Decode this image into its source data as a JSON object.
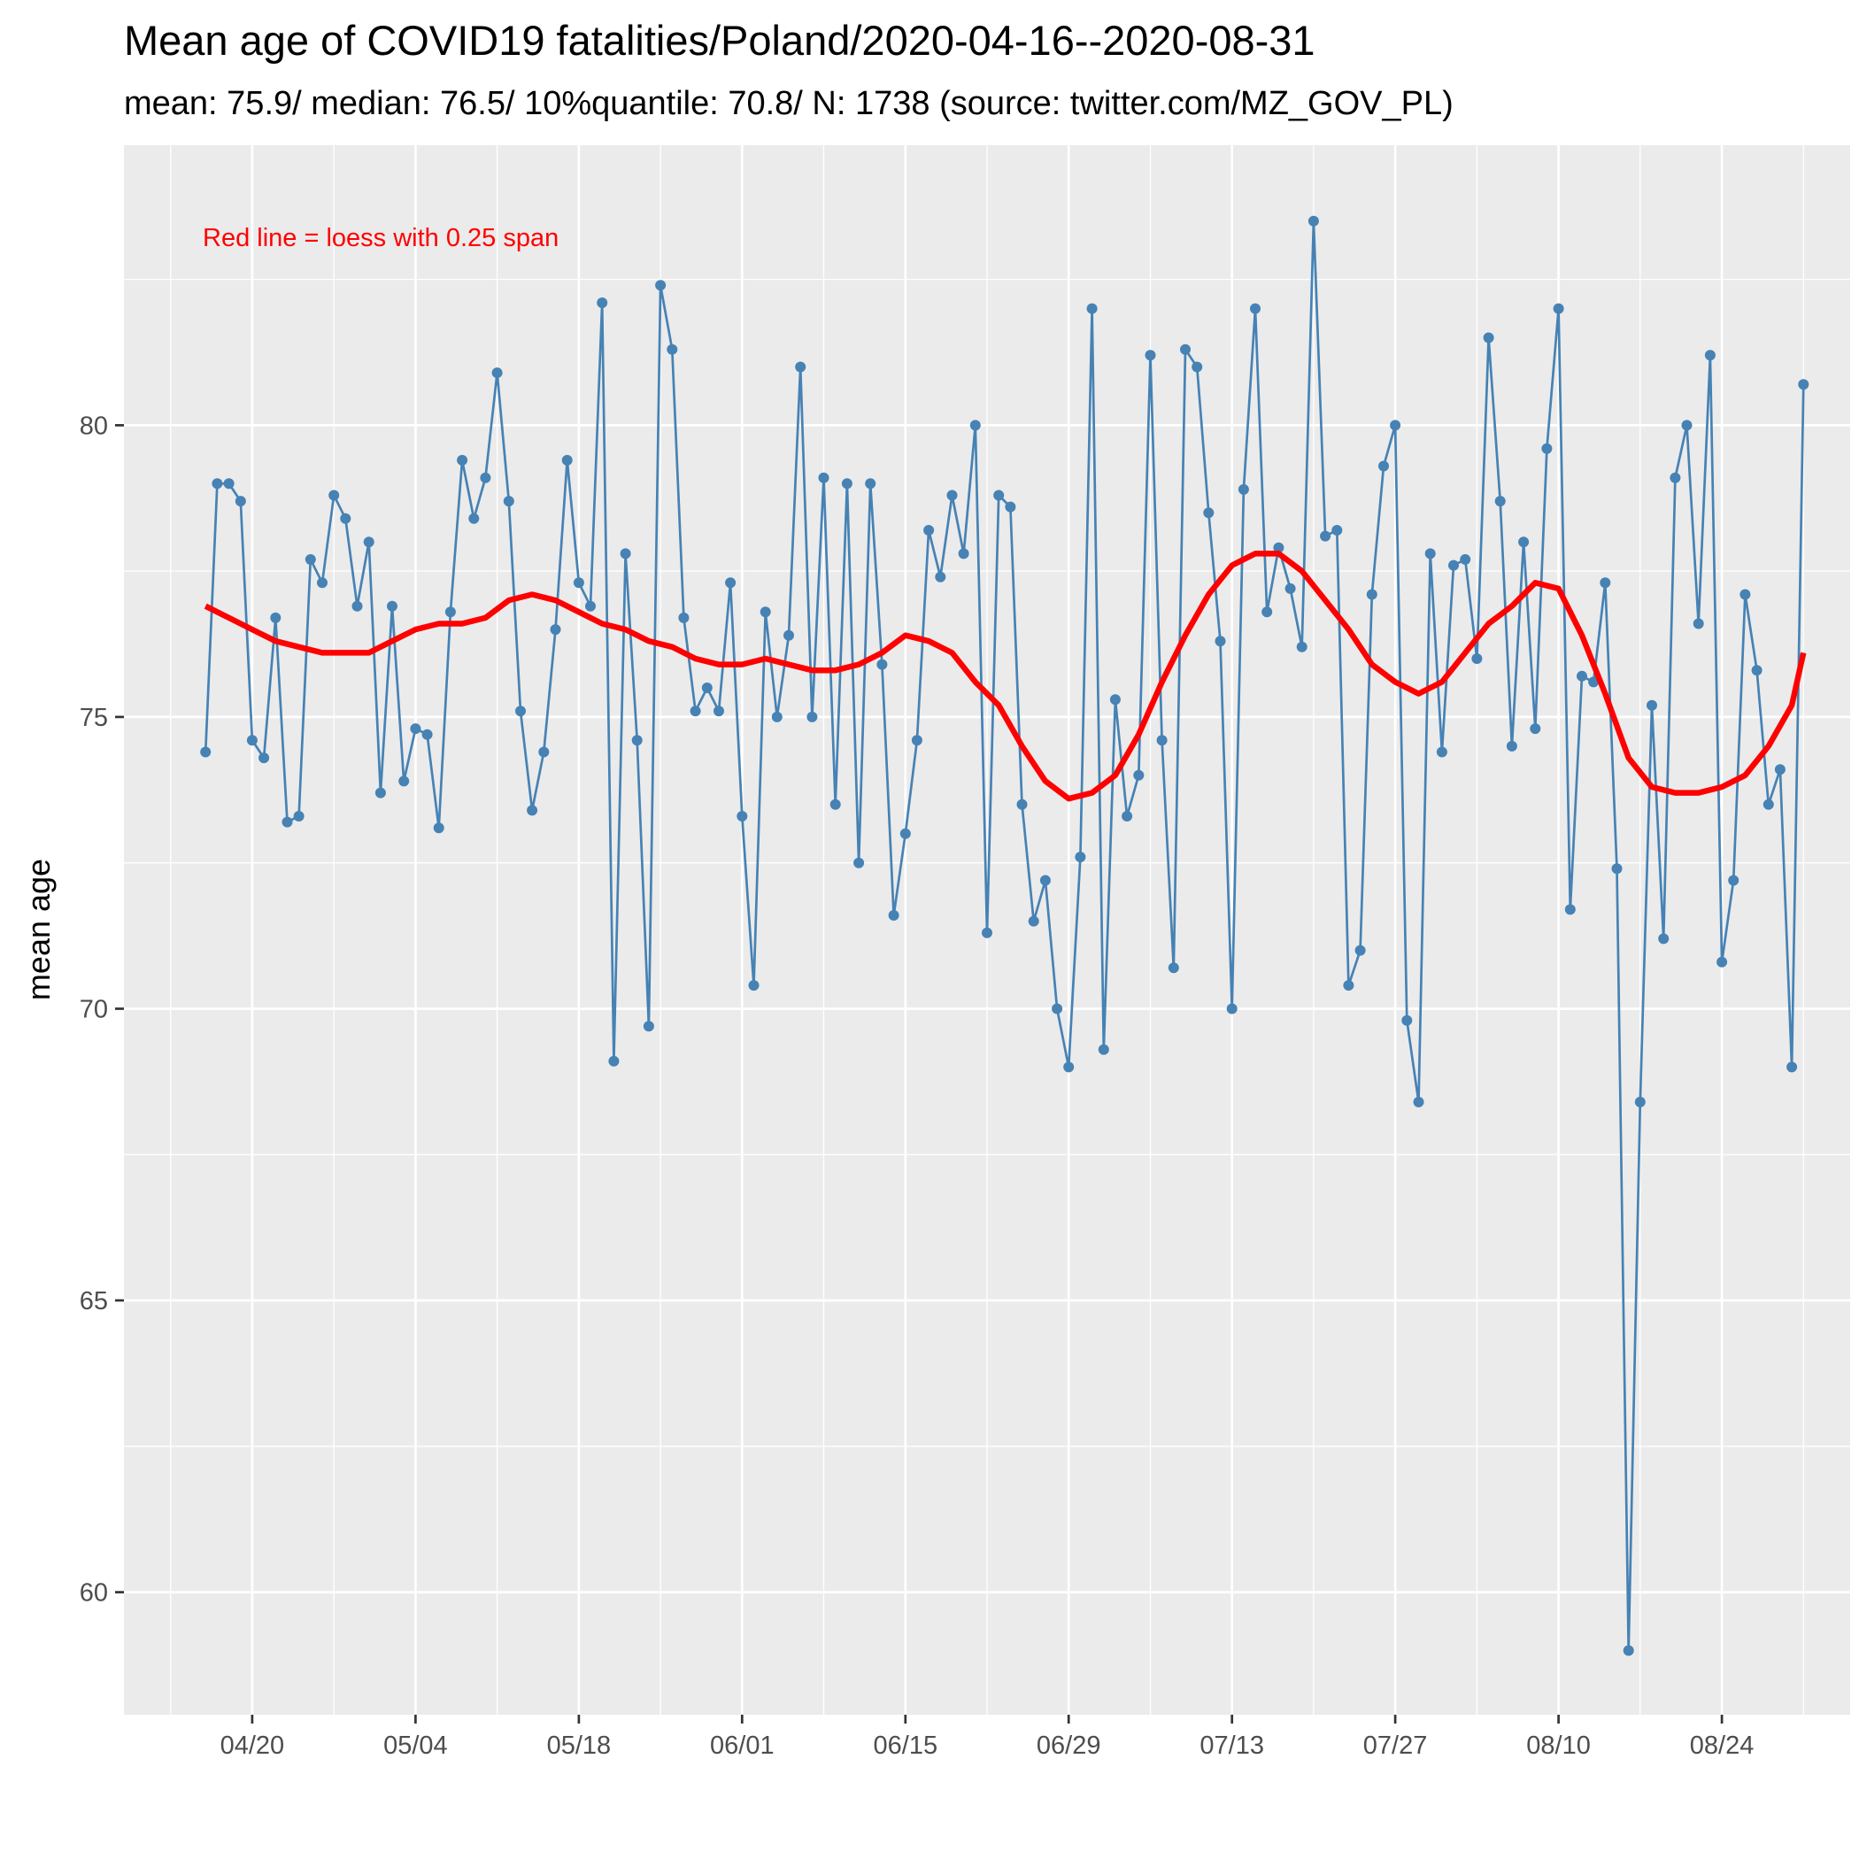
{
  "chart_data": {
    "type": "line",
    "title": "Mean age of COVID19 fatalities/Poland/2020-04-16--2020-08-31",
    "subtitle": "mean: 75.9/ median: 76.5/ 10%quantile: 70.8/ N: 1738 (source: twitter.com/MZ_GOV_PL)",
    "xlabel": "",
    "ylabel": "mean age",
    "annotation": "Red line = loess with 0.25 span",
    "x_start": "2020-04-16",
    "x_end": "2020-08-31",
    "xlim": [
      "2020-04-09",
      "2020-09-04"
    ],
    "ylim": [
      57.9,
      84.8
    ],
    "x_ticks": [
      {
        "date": "2020-04-20",
        "label": "04/20"
      },
      {
        "date": "2020-05-04",
        "label": "05/04"
      },
      {
        "date": "2020-05-18",
        "label": "05/18"
      },
      {
        "date": "2020-06-01",
        "label": "06/01"
      },
      {
        "date": "2020-06-15",
        "label": "06/15"
      },
      {
        "date": "2020-06-29",
        "label": "06/29"
      },
      {
        "date": "2020-07-13",
        "label": "07/13"
      },
      {
        "date": "2020-07-27",
        "label": "07/27"
      },
      {
        "date": "2020-08-10",
        "label": "08/10"
      },
      {
        "date": "2020-08-24",
        "label": "08/24"
      }
    ],
    "y_ticks": [
      {
        "value": 60,
        "label": "60"
      },
      {
        "value": 65,
        "label": "65"
      },
      {
        "value": 70,
        "label": "70"
      },
      {
        "value": 75,
        "label": "75"
      },
      {
        "value": 80,
        "label": "80"
      }
    ],
    "grid": true,
    "background": "#EBEBEB",
    "series": [
      {
        "color": "#4682B4",
        "style": "line+points",
        "values": [
          74.4,
          79.0,
          79.0,
          78.7,
          74.6,
          74.3,
          76.7,
          73.2,
          73.3,
          77.7,
          77.3,
          78.8,
          78.4,
          76.9,
          78.0,
          73.7,
          76.9,
          73.9,
          74.8,
          74.7,
          73.1,
          76.8,
          79.4,
          78.4,
          79.1,
          80.9,
          78.7,
          75.1,
          73.4,
          74.4,
          76.5,
          79.4,
          77.3,
          76.9,
          82.1,
          69.1,
          77.8,
          74.6,
          69.7,
          82.4,
          81.3,
          76.7,
          75.1,
          75.5,
          75.1,
          77.3,
          73.3,
          70.4,
          76.8,
          75.0,
          76.4,
          81.0,
          75.0,
          79.1,
          73.5,
          79.0,
          72.5,
          79.0,
          75.9,
          71.6,
          73.0,
          74.6,
          78.2,
          77.4,
          78.8,
          77.8,
          80.0,
          71.3,
          78.8,
          78.6,
          73.5,
          71.5,
          72.2,
          70.0,
          69.0,
          72.6,
          82.0,
          69.3,
          75.3,
          73.3,
          74.0,
          81.2,
          74.6,
          70.7,
          81.3,
          81.0,
          78.5,
          76.3,
          70.0,
          78.9,
          82.0,
          76.8,
          77.9,
          77.2,
          76.2,
          83.5,
          78.1,
          78.2,
          70.4,
          71.0,
          77.1,
          79.3,
          80.0,
          69.8,
          68.4,
          77.8,
          74.4,
          77.6,
          77.7,
          76.0,
          81.5,
          78.7,
          74.5,
          78.0,
          74.8,
          79.6,
          82.0,
          71.7,
          75.7,
          75.6,
          77.3,
          72.4,
          59.0,
          68.4,
          75.2,
          71.2,
          79.1,
          80.0,
          76.6,
          81.2,
          70.8,
          72.2,
          77.1,
          75.8,
          73.5,
          74.1,
          69.0,
          80.7
        ]
      },
      {
        "color": "#FF0000",
        "style": "line",
        "smoother": "loess 0.25",
        "points": [
          [
            "2020-04-16",
            76.9
          ],
          [
            "2020-04-18",
            76.7
          ],
          [
            "2020-04-20",
            76.5
          ],
          [
            "2020-04-22",
            76.3
          ],
          [
            "2020-04-24",
            76.2
          ],
          [
            "2020-04-26",
            76.1
          ],
          [
            "2020-04-28",
            76.1
          ],
          [
            "2020-04-30",
            76.1
          ],
          [
            "2020-05-02",
            76.3
          ],
          [
            "2020-05-04",
            76.5
          ],
          [
            "2020-05-06",
            76.6
          ],
          [
            "2020-05-08",
            76.6
          ],
          [
            "2020-05-10",
            76.7
          ],
          [
            "2020-05-12",
            77.0
          ],
          [
            "2020-05-14",
            77.1
          ],
          [
            "2020-05-16",
            77.0
          ],
          [
            "2020-05-18",
            76.8
          ],
          [
            "2020-05-20",
            76.6
          ],
          [
            "2020-05-22",
            76.5
          ],
          [
            "2020-05-24",
            76.3
          ],
          [
            "2020-05-26",
            76.2
          ],
          [
            "2020-05-28",
            76.0
          ],
          [
            "2020-05-30",
            75.9
          ],
          [
            "2020-06-01",
            75.9
          ],
          [
            "2020-06-03",
            76.0
          ],
          [
            "2020-06-05",
            75.9
          ],
          [
            "2020-06-07",
            75.8
          ],
          [
            "2020-06-09",
            75.8
          ],
          [
            "2020-06-11",
            75.9
          ],
          [
            "2020-06-13",
            76.1
          ],
          [
            "2020-06-15",
            76.4
          ],
          [
            "2020-06-17",
            76.3
          ],
          [
            "2020-06-19",
            76.1
          ],
          [
            "2020-06-21",
            75.6
          ],
          [
            "2020-06-23",
            75.2
          ],
          [
            "2020-06-25",
            74.5
          ],
          [
            "2020-06-27",
            73.9
          ],
          [
            "2020-06-29",
            73.6
          ],
          [
            "2020-07-01",
            73.7
          ],
          [
            "2020-07-03",
            74.0
          ],
          [
            "2020-07-05",
            74.7
          ],
          [
            "2020-07-07",
            75.6
          ],
          [
            "2020-07-09",
            76.4
          ],
          [
            "2020-07-11",
            77.1
          ],
          [
            "2020-07-13",
            77.6
          ],
          [
            "2020-07-15",
            77.8
          ],
          [
            "2020-07-17",
            77.8
          ],
          [
            "2020-07-19",
            77.5
          ],
          [
            "2020-07-21",
            77.0
          ],
          [
            "2020-07-23",
            76.5
          ],
          [
            "2020-07-25",
            75.9
          ],
          [
            "2020-07-27",
            75.6
          ],
          [
            "2020-07-29",
            75.4
          ],
          [
            "2020-07-31",
            75.6
          ],
          [
            "2020-08-02",
            76.1
          ],
          [
            "2020-08-04",
            76.6
          ],
          [
            "2020-08-06",
            76.9
          ],
          [
            "2020-08-08",
            77.3
          ],
          [
            "2020-08-10",
            77.2
          ],
          [
            "2020-08-12",
            76.4
          ],
          [
            "2020-08-14",
            75.4
          ],
          [
            "2020-08-16",
            74.3
          ],
          [
            "2020-08-18",
            73.8
          ],
          [
            "2020-08-20",
            73.7
          ],
          [
            "2020-08-22",
            73.7
          ],
          [
            "2020-08-24",
            73.8
          ],
          [
            "2020-08-26",
            74.0
          ],
          [
            "2020-08-28",
            74.5
          ],
          [
            "2020-08-30",
            75.2
          ],
          [
            "2020-08-31",
            76.1
          ]
        ]
      }
    ]
  }
}
